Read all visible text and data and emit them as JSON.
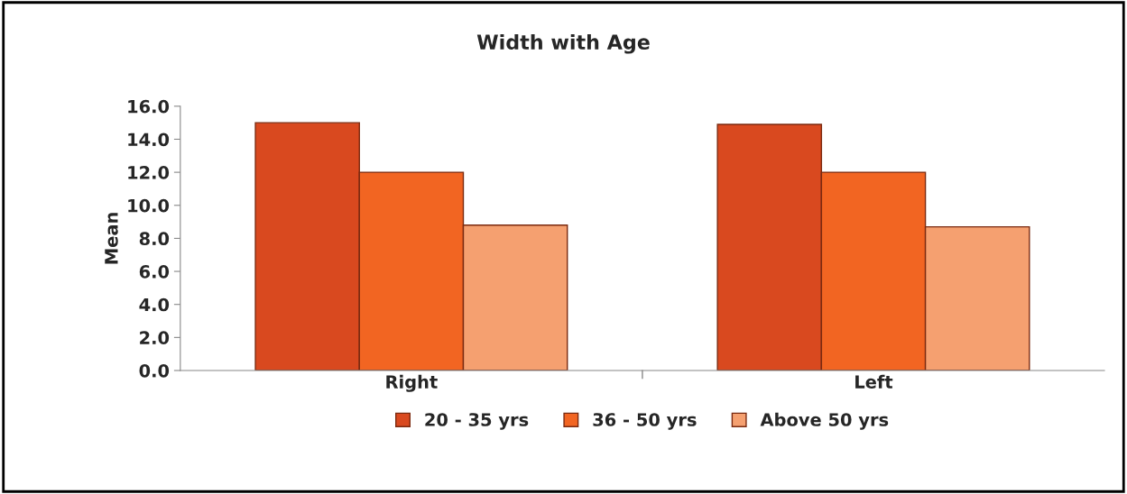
{
  "chart_data": {
    "type": "bar",
    "title": "Width with Age",
    "ylabel": "Mean",
    "categories": [
      "Right",
      "Left"
    ],
    "series": [
      {
        "name": "20 - 35 yrs",
        "color": "#d9491f",
        "values": [
          15.0,
          14.9
        ]
      },
      {
        "name": "36 - 50 yrs",
        "color": "#f26522",
        "values": [
          12.0,
          12.0
        ]
      },
      {
        "name": "Above 50 yrs",
        "color": "#f5a070",
        "values": [
          8.8,
          8.7
        ]
      }
    ],
    "ylim": [
      0,
      16
    ],
    "yticks": [
      {
        "value": 0,
        "label": "0.0"
      },
      {
        "value": 2,
        "label": "2.0"
      },
      {
        "value": 4,
        "label": "4.0"
      },
      {
        "value": 6,
        "label": "6.0"
      },
      {
        "value": 8,
        "label": "8.0"
      },
      {
        "value": 10,
        "label": "10.0"
      },
      {
        "value": 12,
        "label": "12.0"
      },
      {
        "value": 14,
        "label": "14.0"
      },
      {
        "value": 16,
        "label": "16.0"
      }
    ],
    "grid": false,
    "legend": "bottom"
  }
}
